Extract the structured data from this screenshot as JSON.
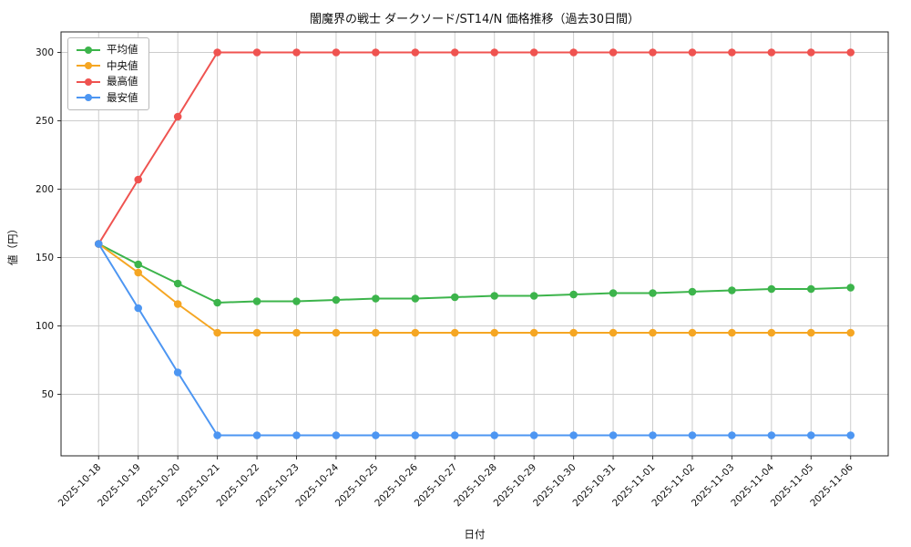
{
  "title": "闇魔界の戦士 ダークソード/ST14/N 価格推移（過去30日間）",
  "chart_data": {
    "type": "line",
    "title": "闇魔界の戦士 ダークソード/ST14/N 価格推移（過去30日間）",
    "xlabel": "日付",
    "ylabel": "値（円）",
    "ylim": [
      5,
      315
    ],
    "yticks": [
      50,
      100,
      150,
      200,
      250,
      300
    ],
    "grid": true,
    "grid_color": "#cccccc",
    "legend_position": "upper left",
    "categories": [
      "2025-10-18",
      "2025-10-19",
      "2025-10-20",
      "2025-10-21",
      "2025-10-22",
      "2025-10-23",
      "2025-10-24",
      "2025-10-25",
      "2025-10-26",
      "2025-10-27",
      "2025-10-28",
      "2025-10-29",
      "2025-10-30",
      "2025-10-31",
      "2025-11-01",
      "2025-11-02",
      "2025-11-03",
      "2025-11-04",
      "2025-11-05",
      "2025-11-06"
    ],
    "series": [
      {
        "name": "平均値",
        "color": "#3cb44b",
        "values": [
          160,
          145,
          131,
          117,
          118,
          118,
          119,
          120,
          120,
          121,
          122,
          122,
          123,
          124,
          124,
          125,
          126,
          127,
          127,
          128
        ]
      },
      {
        "name": "中央値",
        "color": "#f5a623",
        "values": [
          160,
          139,
          116,
          95,
          95,
          95,
          95,
          95,
          95,
          95,
          95,
          95,
          95,
          95,
          95,
          95,
          95,
          95,
          95,
          95
        ]
      },
      {
        "name": "最高値",
        "color": "#ef5350",
        "values": [
          160,
          207,
          253,
          300,
          300,
          300,
          300,
          300,
          300,
          300,
          300,
          300,
          300,
          300,
          300,
          300,
          300,
          300,
          300,
          300
        ]
      },
      {
        "name": "最安値",
        "color": "#4d96f2",
        "values": [
          160,
          113,
          66,
          20,
          20,
          20,
          20,
          20,
          20,
          20,
          20,
          20,
          20,
          20,
          20,
          20,
          20,
          20,
          20,
          20
        ]
      }
    ]
  }
}
